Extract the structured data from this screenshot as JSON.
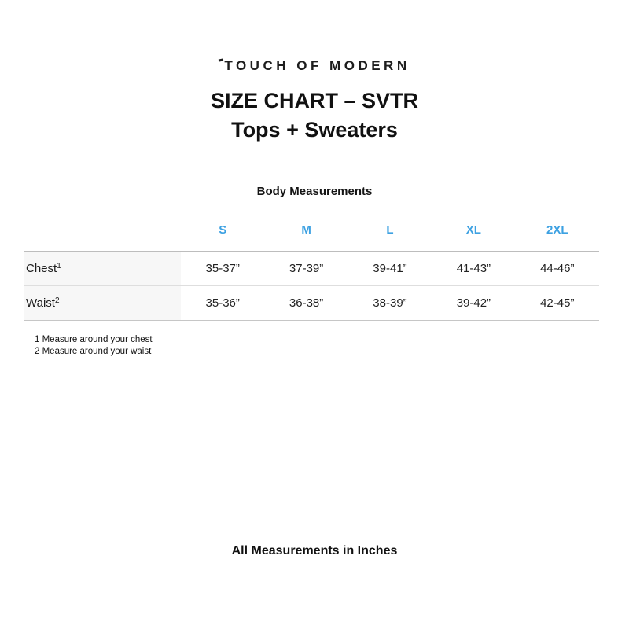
{
  "brand": {
    "logo": "TOUCH OF MODERN"
  },
  "title": {
    "line1": "SIZE CHART – SVTR",
    "line2": "Tops + Sweaters"
  },
  "section": {
    "heading": "Body Measurements"
  },
  "table": {
    "columns": [
      "S",
      "M",
      "L",
      "XL",
      "2XL"
    ],
    "rows": [
      {
        "label": "Chest",
        "footnote_ref": "1",
        "values": [
          "35-37”",
          "37-39”",
          "39-41”",
          "41-43”",
          "44-46”"
        ]
      },
      {
        "label": "Waist",
        "footnote_ref": "2",
        "values": [
          "35-36”",
          "36-38”",
          "38-39”",
          "39-42”",
          "42-45”"
        ]
      }
    ]
  },
  "footnotes": [
    "1 Measure around your chest",
    "2 Measure around your waist"
  ],
  "footer": {
    "note": "All Measurements in Inches"
  },
  "colors": {
    "accent_blue": "#3da1e2",
    "text": "#1d1d1d",
    "label_cell_bg": "#f7f7f7",
    "outer_border": "#bdbdbd",
    "inner_border": "#dedede"
  }
}
